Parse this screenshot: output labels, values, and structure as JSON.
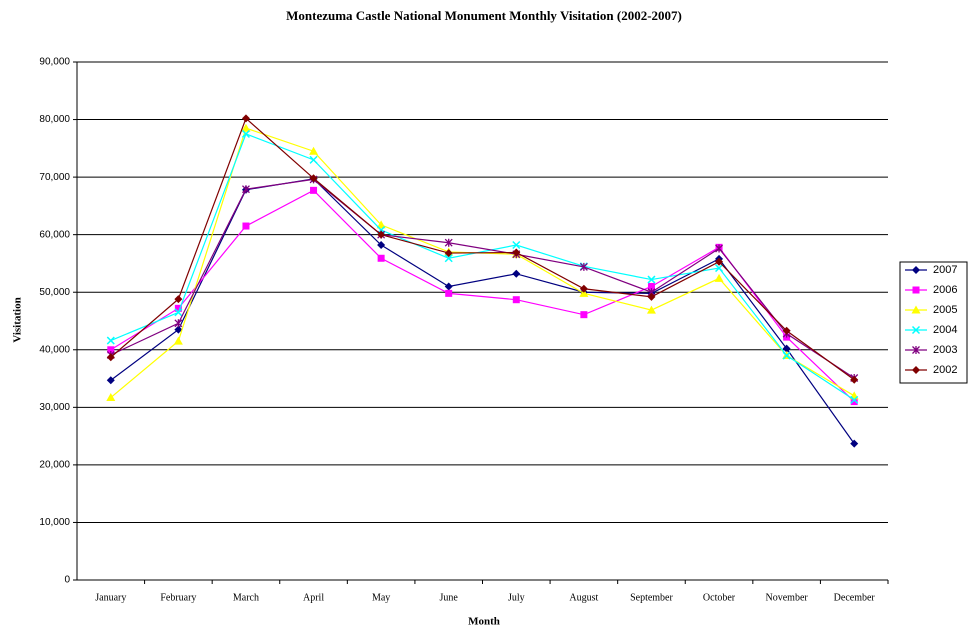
{
  "chart_data": {
    "type": "line",
    "title": "Montezuma Castle National Monument Monthly Visitation (2002-2007)",
    "xlabel": "Month",
    "ylabel": "Visitation",
    "categories": [
      "January",
      "February",
      "March",
      "April",
      "May",
      "June",
      "July",
      "August",
      "September",
      "October",
      "November",
      "December"
    ],
    "series": [
      {
        "name": "2007",
        "color": "#000080",
        "marker": "diamond",
        "values": [
          34700,
          43500,
          67800,
          69700,
          58200,
          51000,
          53200,
          50000,
          49800,
          55800,
          40200,
          23700
        ]
      },
      {
        "name": "2006",
        "color": "#ff00ff",
        "marker": "square",
        "values": [
          40000,
          47200,
          61500,
          67700,
          55900,
          49800,
          48700,
          46100,
          51000,
          57800,
          42200,
          31000
        ]
      },
      {
        "name": "2005",
        "color": "#ffff00",
        "marker": "triangle",
        "values": [
          31700,
          41500,
          78500,
          74500,
          61700,
          57000,
          56600,
          49800,
          46900,
          52400,
          39000,
          32000
        ]
      },
      {
        "name": "2004",
        "color": "#00ffff",
        "marker": "cross",
        "values": [
          41600,
          46500,
          77500,
          73000,
          60800,
          55900,
          58200,
          54500,
          52200,
          54200,
          39000,
          31300
        ]
      },
      {
        "name": "2003",
        "color": "#800080",
        "marker": "star",
        "values": [
          39100,
          44600,
          67900,
          69600,
          60000,
          58600,
          56600,
          54400,
          50000,
          57600,
          42800,
          35100
        ]
      },
      {
        "name": "2002",
        "color": "#800000",
        "marker": "diamond",
        "values": [
          38700,
          48800,
          80200,
          69800,
          60000,
          56800,
          56900,
          50600,
          49200,
          55300,
          43300,
          34800
        ]
      }
    ],
    "ylim": [
      0,
      90000
    ],
    "yticks": [
      0,
      {
        "value": 10000,
        "label": "10,000"
      },
      {
        "value": 20000,
        "label": "20,000"
      },
      {
        "value": 30000,
        "label": "30,000"
      },
      {
        "value": 40000,
        "label": "40,000"
      },
      {
        "value": 50000,
        "label": "50,000"
      },
      {
        "value": 60000,
        "label": "60,000"
      },
      {
        "value": 70000,
        "label": "70,000"
      },
      {
        "value": 80000,
        "label": "80,000"
      },
      {
        "value": 90000,
        "label": "90,000"
      }
    ],
    "grid": true,
    "legend": "right"
  }
}
